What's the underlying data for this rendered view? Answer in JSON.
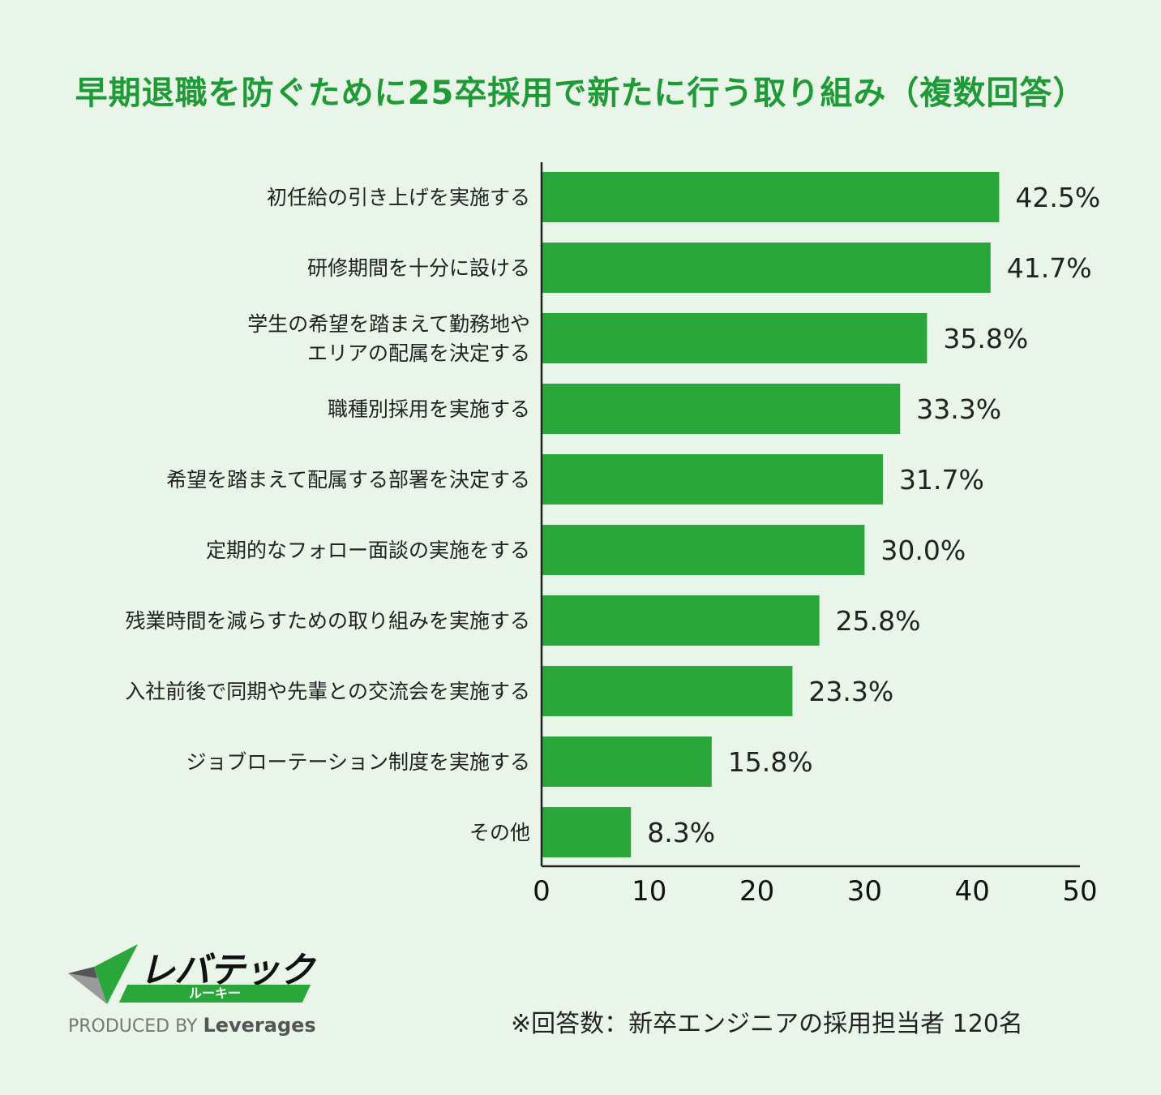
{
  "colors": {
    "background": "#e8f5e8",
    "bar": "#2aa63b",
    "title": "#1f9a36",
    "axis": "#222222"
  },
  "chart_data": {
    "type": "bar",
    "orientation": "horizontal",
    "title": "早期退職を防ぐために25卒採用で新たに行う取り組み（複数回答）",
    "categories": [
      [
        "初任給の引き上げを実施する"
      ],
      [
        "研修期間を十分に設ける"
      ],
      [
        "学生の希望を踏まえて勤務地や",
        "エリアの配属を決定する"
      ],
      [
        "職種別採用を実施する"
      ],
      [
        "希望を踏まえて配属する部署を決定する"
      ],
      [
        "定期的なフォロー面談の実施をする"
      ],
      [
        "残業時間を減らすための取り組みを実施する"
      ],
      [
        "入社前後で同期や先輩との交流会を実施する"
      ],
      [
        "ジョブローテーション制度を実施する"
      ],
      [
        "その他"
      ]
    ],
    "values": [
      42.5,
      41.7,
      35.8,
      33.3,
      31.7,
      30.0,
      25.8,
      23.3,
      15.8,
      8.3
    ],
    "value_labels": [
      "42.5%",
      "41.7%",
      "35.8%",
      "33.3%",
      "31.7%",
      "30.0%",
      "25.8%",
      "23.3%",
      "15.8%",
      "8.3%"
    ],
    "xlim": [
      0,
      50
    ],
    "xticks": [
      "0",
      "10",
      "20",
      "30",
      "40",
      "50"
    ],
    "grid": false,
    "legend": "none"
  },
  "logo": {
    "wordmark": "レバテック",
    "sub": "ルーキー",
    "produced_by": "PRODUCED BY",
    "brand": "Leverages"
  },
  "footnote": "※回答数：新卒エンジニアの採用担当者 120名"
}
